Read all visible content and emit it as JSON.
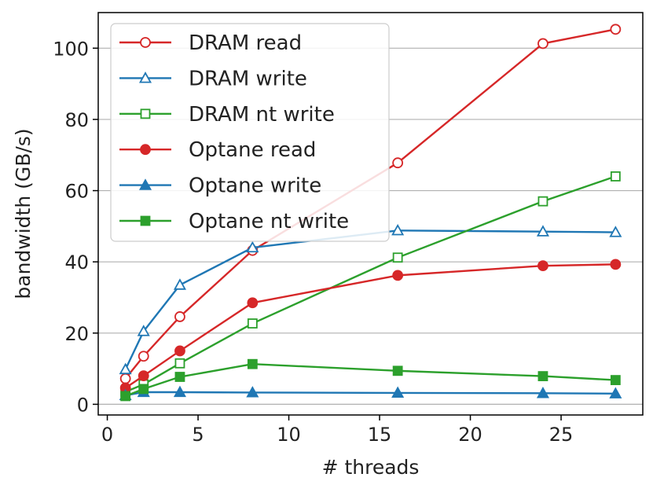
{
  "chart_data": {
    "type": "line",
    "xlabel": "# threads",
    "ylabel": "bandwidth (GB/s)",
    "xlim": [
      -0.5,
      29.5
    ],
    "ylim": [
      -3,
      110
    ],
    "xticks": [
      0,
      5,
      10,
      15,
      20,
      25
    ],
    "yticks": [
      0,
      20,
      40,
      60,
      80,
      100
    ],
    "grid": "horizontal",
    "legend_position": "top-left",
    "x": [
      1,
      2,
      4,
      8,
      16,
      24,
      28
    ],
    "series": [
      {
        "name": "DRAM read",
        "color": "#d62728",
        "marker": "circle",
        "filled": false,
        "values": [
          7.2,
          13.5,
          24.6,
          43.2,
          67.8,
          101.3,
          105.3
        ]
      },
      {
        "name": "DRAM write",
        "color": "#1f77b4",
        "marker": "triangle",
        "filled": false,
        "values": [
          9.8,
          20.5,
          33.5,
          44.0,
          48.8,
          48.5,
          48.3
        ]
      },
      {
        "name": "DRAM nt write",
        "color": "#2ca02c",
        "marker": "square",
        "filled": false,
        "values": [
          3.5,
          5.6,
          11.5,
          22.7,
          41.2,
          57.0,
          64.0
        ]
      },
      {
        "name": "Optane read",
        "color": "#d62728",
        "marker": "circle",
        "filled": true,
        "values": [
          4.6,
          8.0,
          15.0,
          28.5,
          36.2,
          38.9,
          39.3
        ]
      },
      {
        "name": "Optane write",
        "color": "#1f77b4",
        "marker": "triangle",
        "filled": true,
        "values": [
          2.5,
          3.4,
          3.4,
          3.3,
          3.2,
          3.1,
          3.0
        ]
      },
      {
        "name": "Optane nt write",
        "color": "#2ca02c",
        "marker": "square",
        "filled": true,
        "values": [
          2.3,
          4.3,
          7.7,
          11.3,
          9.4,
          7.9,
          6.8
        ]
      }
    ]
  }
}
